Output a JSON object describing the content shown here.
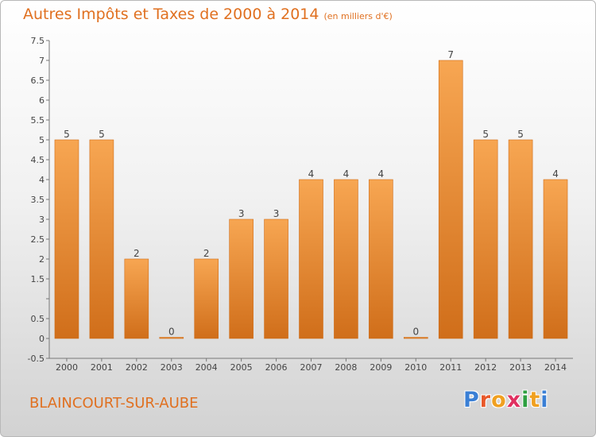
{
  "header": {
    "title": "Autres Impôts et Taxes de 2000 à 2014",
    "unit_note": "(en milliers d'€)"
  },
  "commune": "BLAINCOURT-SUR-AUBE",
  "logo": {
    "text": "Proxiti",
    "letter_colors": [
      "#3a7fd5",
      "#e8582a",
      "#f0a020",
      "#e03060",
      "#2e9f40",
      "#f0a020",
      "#3a7fd5"
    ]
  },
  "colors": {
    "bar_light": "#f7a652",
    "bar_dark": "#d06e1a",
    "label": "#444444",
    "grid": "#cccccc"
  },
  "chart_data": {
    "type": "bar",
    "title": "Autres Impôts et Taxes de 2000 à 2014",
    "subtitle": "(en milliers d'€)",
    "categories": [
      "2000",
      "2001",
      "2002",
      "2003",
      "2004",
      "2005",
      "2006",
      "2007",
      "2008",
      "2009",
      "2010",
      "2011",
      "2012",
      "2013",
      "2014"
    ],
    "values": [
      5,
      5,
      2,
      0,
      2,
      3,
      3,
      4,
      4,
      4,
      0,
      7,
      5,
      5,
      4
    ],
    "value_labels": [
      "5",
      "5",
      "2",
      "0",
      "2",
      "3",
      "3",
      "4",
      "4",
      "4",
      "0",
      "7",
      "5",
      "5",
      "4"
    ],
    "ylim": [
      -0.5,
      7.5
    ],
    "yticks": [
      {
        "v": -0.5,
        "label": "-0.5"
      },
      {
        "v": 0,
        "label": "0"
      },
      {
        "v": 0.5,
        "label": "0.5"
      },
      {
        "v": 1,
        "label": ""
      },
      {
        "v": 1.5,
        "label": "1.5"
      },
      {
        "v": 2,
        "label": "2"
      },
      {
        "v": 2.5,
        "label": "2.5"
      },
      {
        "v": 3,
        "label": "3"
      },
      {
        "v": 3.5,
        "label": "3.5"
      },
      {
        "v": 4,
        "label": "4"
      },
      {
        "v": 4.5,
        "label": "4.5"
      },
      {
        "v": 5,
        "label": "5"
      },
      {
        "v": 5.5,
        "label": "5.5"
      },
      {
        "v": 6,
        "label": "6"
      },
      {
        "v": 6.5,
        "label": "6.5"
      },
      {
        "v": 7,
        "label": "7"
      },
      {
        "v": 7.5,
        "label": "7.5"
      }
    ],
    "xlabel": "",
    "ylabel": "",
    "grid": false,
    "legend": "none"
  }
}
